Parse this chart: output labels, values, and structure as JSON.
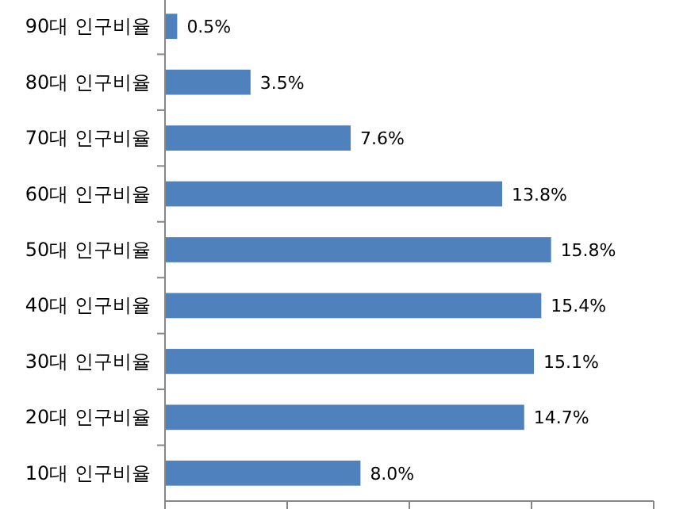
{
  "chart_data": {
    "type": "bar",
    "orientation": "horizontal",
    "categories": [
      "90대 인구비율",
      "80대 인구비율",
      "70대 인구비율",
      "60대 인구비율",
      "50대 인구비율",
      "40대 인구비율",
      "30대 인구비율",
      "20대 인구비율",
      "10대 인구비율"
    ],
    "values": [
      0.5,
      3.5,
      7.6,
      13.8,
      15.8,
      15.4,
      15.1,
      14.7,
      8.0
    ],
    "value_labels": [
      "0.5%",
      "3.5%",
      "7.6%",
      "13.8%",
      "15.8%",
      "15.4%",
      "15.1%",
      "14.7%",
      "8.0%"
    ],
    "color": "#4f81bd",
    "xlim": [
      0,
      20
    ],
    "xticks": [
      {
        "value": 0,
        "label": null
      },
      {
        "value": 5,
        "label": null
      },
      {
        "value": 10,
        "label": null
      },
      {
        "value": 15,
        "label": null
      },
      {
        "value": 20,
        "label": null
      }
    ],
    "tick_labels": "y",
    "grid": false
  }
}
